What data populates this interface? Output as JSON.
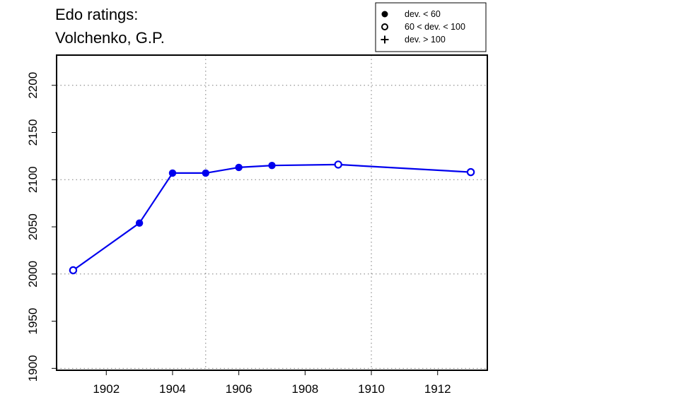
{
  "title_line1": "Edo ratings:",
  "title_line2": "Volchenko, G.P.",
  "chart_data": {
    "type": "line",
    "x": [
      1901,
      1903,
      1904,
      1905,
      1906,
      1907,
      1909,
      1913
    ],
    "y": [
      2004,
      2054,
      2107,
      2107,
      2113,
      2115,
      2116,
      2108
    ],
    "deviation_class": [
      "60-100",
      "<60",
      "<60",
      "<60",
      "<60",
      "<60",
      "60-100",
      "60-100"
    ],
    "xticks": [
      1902,
      1904,
      1906,
      1908,
      1910,
      1912
    ],
    "yticks": [
      1900,
      1950,
      2000,
      2050,
      2100,
      2150,
      2200
    ],
    "xlim": [
      1900.5,
      1913.5
    ],
    "ylim": [
      1898,
      2232
    ],
    "grid_x": [
      1905,
      1910
    ],
    "grid_y": [
      1900,
      2000,
      2100,
      2200
    ],
    "line_color": "#0000ee",
    "legend": {
      "placement": "top-right",
      "entries": [
        {
          "marker": "filled-circle",
          "label": "dev. < 60"
        },
        {
          "marker": "open-circle",
          "label": "60 < dev. < 100"
        },
        {
          "marker": "plus",
          "label": "dev. > 100"
        }
      ]
    }
  }
}
